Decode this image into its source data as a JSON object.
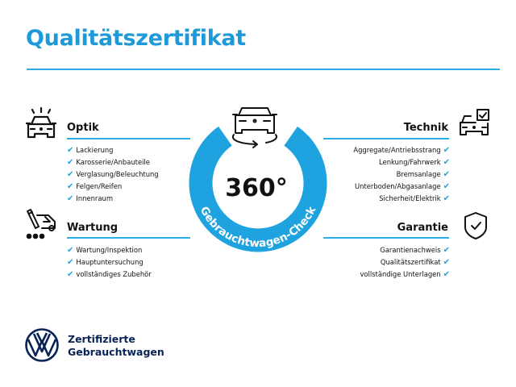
{
  "title": "Qualitätszertifikat",
  "center": {
    "degrees": "360°",
    "ring_text": "Gebrauchtwagen-Check",
    "icon": "car-rotate-icon"
  },
  "sections": {
    "optik": {
      "title": "Optik",
      "icon": "car-lights-icon",
      "items": [
        "Lackierung",
        "Karosserie/Anbauteile",
        "Verglasung/Beleuchtung",
        "Felgen/Reifen",
        "Innenraum"
      ]
    },
    "wartung": {
      "title": "Wartung",
      "icon": "service-car-icon",
      "items": [
        "Wartung/Inspektion",
        "Hauptuntersuchung",
        "vollständiges Zubehör"
      ]
    },
    "technik": {
      "title": "Technik",
      "icon": "car-checkbox-icon",
      "items": [
        "Aggregate/Antriebsstrang",
        "Lenkung/Fahrwerk",
        "Bremsanlage",
        "Unterboden/Abgasanlage",
        "Sicherheit/Elektrik"
      ]
    },
    "garantie": {
      "title": "Garantie",
      "icon": "shield-check-icon",
      "items": [
        "Garantienachweis",
        "Qualitätszertifikat",
        "vollständige Unterlagen"
      ]
    }
  },
  "check_glyph": "✔",
  "footer": {
    "logo": "VW",
    "line1": "Zertifizierte",
    "line2": "Gebrauchtwagen"
  },
  "colors": {
    "accent": "#1ea3e0",
    "title": "#1e9ad8",
    "brand_navy": "#0a2356"
  }
}
